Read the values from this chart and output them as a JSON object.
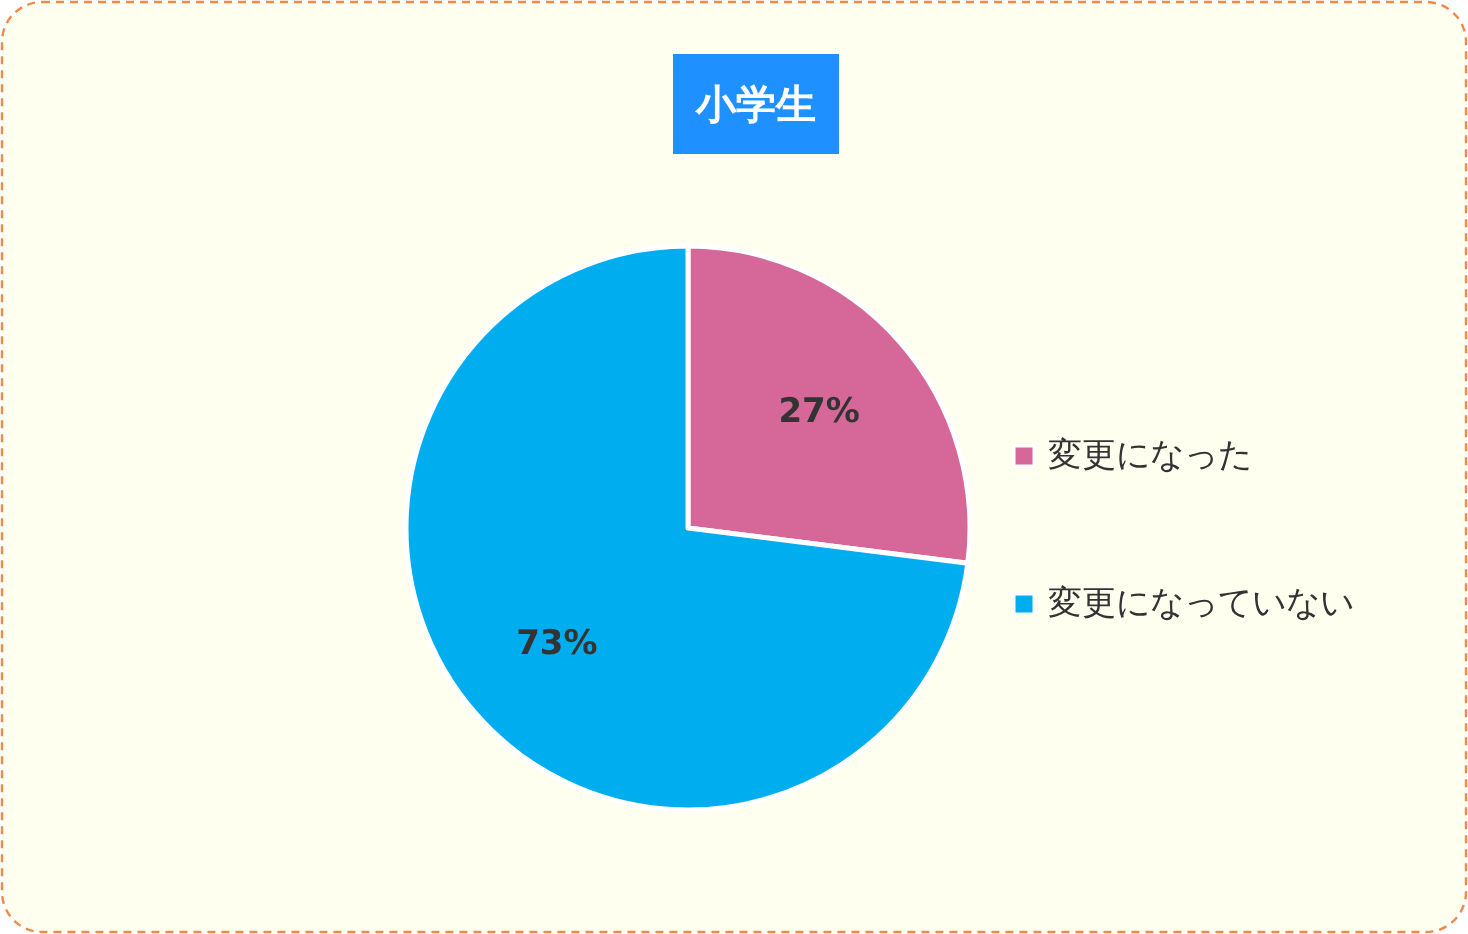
{
  "chart_data": {
    "type": "pie",
    "title": "小学生",
    "categories": [
      "変更になった",
      "変更になっていない"
    ],
    "values": [
      27,
      73
    ],
    "colors": [
      "#d56899",
      "#00aeef"
    ],
    "value_labels": [
      "27%",
      "73%"
    ],
    "legend": "right"
  }
}
